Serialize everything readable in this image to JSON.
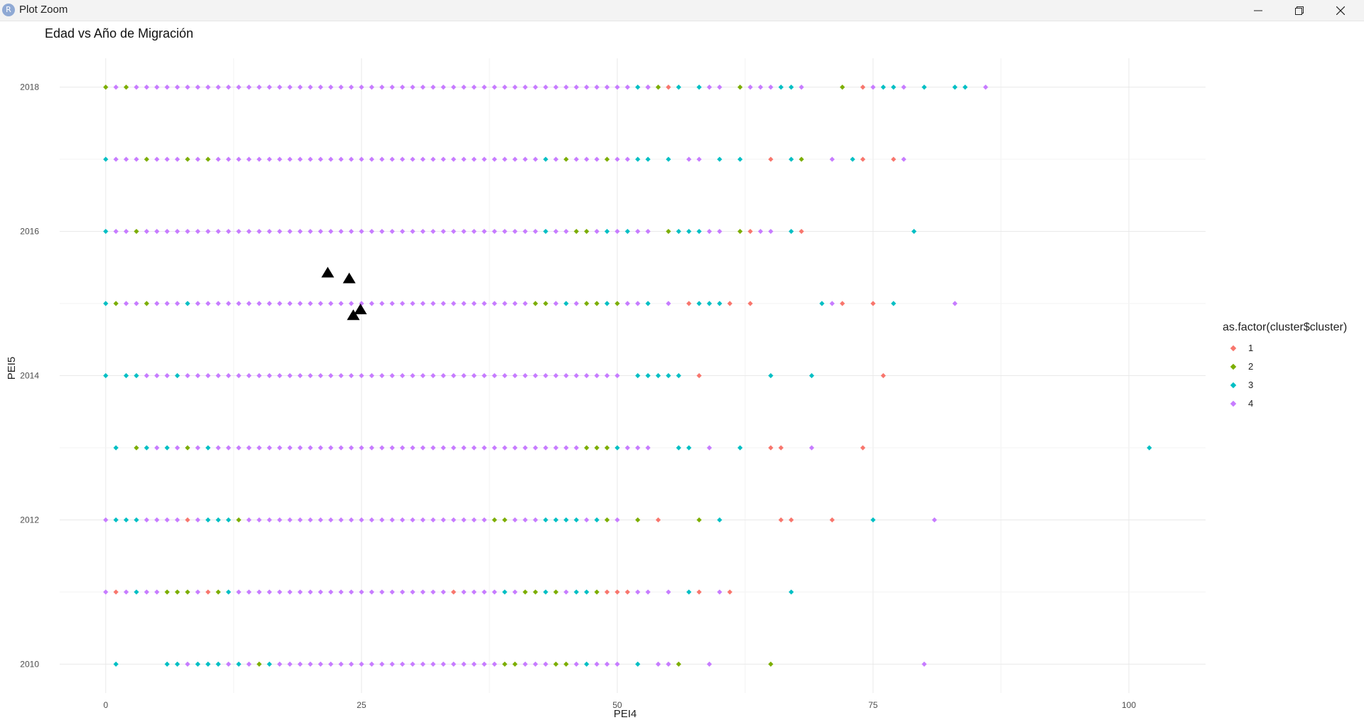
{
  "window": {
    "app_icon_letter": "R",
    "title": "Plot Zoom",
    "controls": [
      "minimize-icon",
      "restore-icon",
      "close-icon"
    ]
  },
  "chart_data": {
    "type": "scatter",
    "title": "Edad vs Año de Migración",
    "xlabel": "PEI4",
    "ylabel": "PEI5",
    "xlim": [
      -4.5,
      107.5
    ],
    "ylim": [
      2009.6,
      2018.4
    ],
    "x_ticks": [
      0,
      25,
      50,
      75,
      100
    ],
    "y_ticks": [
      2010,
      2012,
      2014,
      2016,
      2018
    ],
    "grid": true,
    "legend": {
      "title": "as.factor(cluster$cluster)",
      "placement": "right",
      "entries": [
        "1",
        "2",
        "3",
        "4"
      ]
    },
    "colors": {
      "1": "#F8766D",
      "2": "#7CAE00",
      "3": "#00BFC4",
      "4": "#C77CFF"
    },
    "series": [
      {
        "name": "1",
        "points": [
          [
            55,
            2018
          ],
          [
            74,
            2018
          ],
          [
            65,
            2017
          ],
          [
            74,
            2017
          ],
          [
            77,
            2017
          ],
          [
            63,
            2016
          ],
          [
            68,
            2016
          ],
          [
            57,
            2015
          ],
          [
            61,
            2015
          ],
          [
            63,
            2015
          ],
          [
            72,
            2015
          ],
          [
            75,
            2015
          ],
          [
            58,
            2014
          ],
          [
            76,
            2014
          ],
          [
            65,
            2013
          ],
          [
            66,
            2013
          ],
          [
            74,
            2013
          ],
          [
            8,
            2012
          ],
          [
            54,
            2012
          ],
          [
            66,
            2012
          ],
          [
            67,
            2012
          ],
          [
            71,
            2012
          ],
          [
            1,
            2011
          ],
          [
            10,
            2011
          ],
          [
            34,
            2011
          ],
          [
            49,
            2011
          ],
          [
            50,
            2011
          ],
          [
            51,
            2011
          ],
          [
            58,
            2011
          ],
          [
            61,
            2011
          ]
        ]
      },
      {
        "name": "2",
        "points": [
          [
            0,
            2018
          ],
          [
            2,
            2018
          ],
          [
            54,
            2018
          ],
          [
            62,
            2018
          ],
          [
            72,
            2018
          ],
          [
            4,
            2017
          ],
          [
            8,
            2017
          ],
          [
            10,
            2017
          ],
          [
            45,
            2017
          ],
          [
            49,
            2017
          ],
          [
            68,
            2017
          ],
          [
            3,
            2016
          ],
          [
            46,
            2016
          ],
          [
            47,
            2016
          ],
          [
            55,
            2016
          ],
          [
            62,
            2016
          ],
          [
            1,
            2015
          ],
          [
            4,
            2015
          ],
          [
            42,
            2015
          ],
          [
            43,
            2015
          ],
          [
            47,
            2015
          ],
          [
            48,
            2015
          ],
          [
            50,
            2015
          ],
          [
            3,
            2013
          ],
          [
            8,
            2013
          ],
          [
            47,
            2013
          ],
          [
            48,
            2013
          ],
          [
            49,
            2013
          ],
          [
            13,
            2012
          ],
          [
            38,
            2012
          ],
          [
            39,
            2012
          ],
          [
            49,
            2012
          ],
          [
            52,
            2012
          ],
          [
            58,
            2012
          ],
          [
            6,
            2011
          ],
          [
            7,
            2011
          ],
          [
            8,
            2011
          ],
          [
            11,
            2011
          ],
          [
            41,
            2011
          ],
          [
            42,
            2011
          ],
          [
            44,
            2011
          ],
          [
            48,
            2011
          ],
          [
            15,
            2010
          ],
          [
            39,
            2010
          ],
          [
            40,
            2010
          ],
          [
            44,
            2010
          ],
          [
            45,
            2010
          ],
          [
            56,
            2010
          ],
          [
            65,
            2010
          ]
        ]
      },
      {
        "name": "3",
        "points": [
          [
            52,
            2018
          ],
          [
            56,
            2018
          ],
          [
            58,
            2018
          ],
          [
            66,
            2018
          ],
          [
            67,
            2018
          ],
          [
            76,
            2018
          ],
          [
            77,
            2018
          ],
          [
            80,
            2018
          ],
          [
            83,
            2018
          ],
          [
            84,
            2018
          ],
          [
            0,
            2017
          ],
          [
            43,
            2017
          ],
          [
            52,
            2017
          ],
          [
            53,
            2017
          ],
          [
            55,
            2017
          ],
          [
            60,
            2017
          ],
          [
            62,
            2017
          ],
          [
            67,
            2017
          ],
          [
            73,
            2017
          ],
          [
            0,
            2016
          ],
          [
            43,
            2016
          ],
          [
            49,
            2016
          ],
          [
            51,
            2016
          ],
          [
            56,
            2016
          ],
          [
            57,
            2016
          ],
          [
            58,
            2016
          ],
          [
            67,
            2016
          ],
          [
            79,
            2016
          ],
          [
            0,
            2015
          ],
          [
            8,
            2015
          ],
          [
            45,
            2015
          ],
          [
            49,
            2015
          ],
          [
            53,
            2015
          ],
          [
            58,
            2015
          ],
          [
            59,
            2015
          ],
          [
            60,
            2015
          ],
          [
            70,
            2015
          ],
          [
            77,
            2015
          ],
          [
            0,
            2014
          ],
          [
            2,
            2014
          ],
          [
            3,
            2014
          ],
          [
            7,
            2014
          ],
          [
            52,
            2014
          ],
          [
            53,
            2014
          ],
          [
            54,
            2014
          ],
          [
            55,
            2014
          ],
          [
            56,
            2014
          ],
          [
            65,
            2014
          ],
          [
            69,
            2014
          ],
          [
            1,
            2013
          ],
          [
            4,
            2013
          ],
          [
            6,
            2013
          ],
          [
            10,
            2013
          ],
          [
            50,
            2013
          ],
          [
            56,
            2013
          ],
          [
            57,
            2013
          ],
          [
            62,
            2013
          ],
          [
            102,
            2013
          ],
          [
            1,
            2012
          ],
          [
            2,
            2012
          ],
          [
            3,
            2012
          ],
          [
            10,
            2012
          ],
          [
            11,
            2012
          ],
          [
            12,
            2012
          ],
          [
            43,
            2012
          ],
          [
            44,
            2012
          ],
          [
            45,
            2012
          ],
          [
            46,
            2012
          ],
          [
            48,
            2012
          ],
          [
            60,
            2012
          ],
          [
            75,
            2012
          ],
          [
            3,
            2011
          ],
          [
            12,
            2011
          ],
          [
            39,
            2011
          ],
          [
            43,
            2011
          ],
          [
            46,
            2011
          ],
          [
            47,
            2011
          ],
          [
            57,
            2011
          ],
          [
            67,
            2011
          ],
          [
            1,
            2010
          ],
          [
            6,
            2010
          ],
          [
            7,
            2010
          ],
          [
            9,
            2010
          ],
          [
            10,
            2010
          ],
          [
            11,
            2010
          ],
          [
            13,
            2010
          ],
          [
            16,
            2010
          ],
          [
            47,
            2010
          ],
          [
            52,
            2010
          ]
        ]
      },
      {
        "name": "4",
        "row_full_ranges": [
          [
            2018,
            1,
            53
          ],
          [
            2017,
            1,
            51
          ],
          [
            2016,
            1,
            53
          ],
          [
            2015,
            2,
            53
          ],
          [
            2014,
            4,
            50
          ],
          [
            2013,
            5,
            53
          ],
          [
            2012,
            0,
            50
          ],
          [
            2011,
            0,
            53
          ],
          [
            2010,
            8,
            50
          ]
        ],
        "points": [
          [
            53,
            2018
          ],
          [
            59,
            2018
          ],
          [
            60,
            2018
          ],
          [
            63,
            2018
          ],
          [
            64,
            2018
          ],
          [
            65,
            2018
          ],
          [
            68,
            2018
          ],
          [
            75,
            2018
          ],
          [
            78,
            2018
          ],
          [
            86,
            2018
          ],
          [
            57,
            2017
          ],
          [
            58,
            2017
          ],
          [
            71,
            2017
          ],
          [
            78,
            2017
          ],
          [
            59,
            2016
          ],
          [
            60,
            2016
          ],
          [
            64,
            2016
          ],
          [
            65,
            2016
          ],
          [
            55,
            2015
          ],
          [
            71,
            2015
          ],
          [
            83,
            2015
          ],
          [
            59,
            2013
          ],
          [
            69,
            2013
          ],
          [
            81,
            2012
          ],
          [
            55,
            2011
          ],
          [
            60,
            2011
          ],
          [
            54,
            2010
          ],
          [
            55,
            2010
          ],
          [
            59,
            2010
          ],
          [
            80,
            2010
          ]
        ]
      },
      {
        "name": "",
        "shape": "triangle",
        "color": "#000000",
        "points": [
          [
            21.7,
            2015.43
          ],
          [
            23.8,
            2015.35
          ],
          [
            24.2,
            2014.84
          ],
          [
            24.9,
            2014.92
          ]
        ]
      }
    ]
  }
}
